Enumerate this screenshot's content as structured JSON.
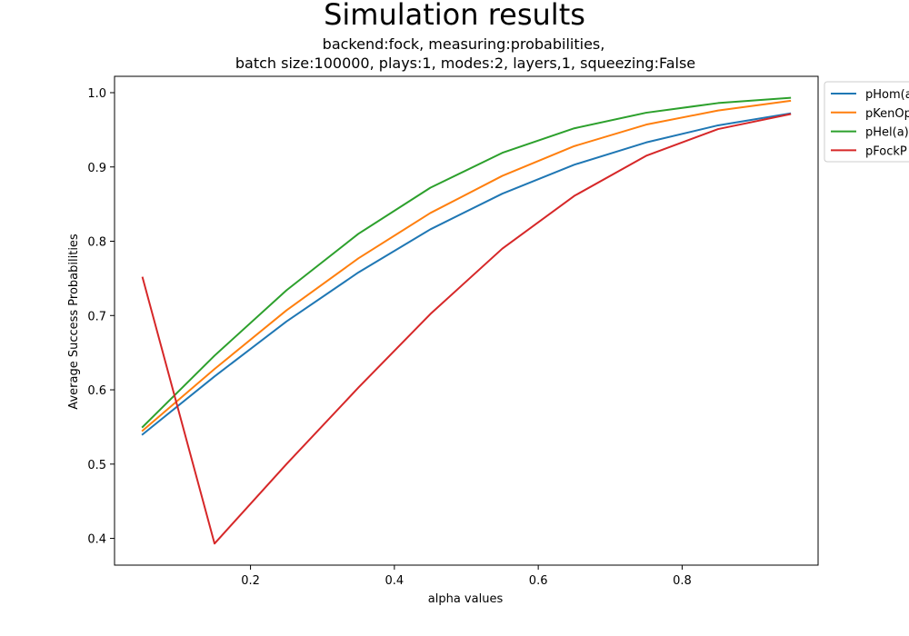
{
  "chart_data": {
    "type": "line",
    "title": "Simulation results",
    "subtitle_lines": [
      "backend:fock, measuring:probabilities,",
      "batch size:100000, plays:1, modes:2, layers,1, squeezing:False"
    ],
    "xlabel": "alpha values",
    "ylabel": "Average Success Probabilities",
    "xlim": [
      0.011,
      0.989
    ],
    "ylim": [
      0.364,
      1.022
    ],
    "xticks": [
      0.2,
      0.4,
      0.6,
      0.8
    ],
    "xtick_labels": [
      "0.2",
      "0.4",
      "0.6",
      "0.8"
    ],
    "yticks": [
      0.4,
      0.5,
      0.6,
      0.7,
      0.8,
      0.9,
      1.0
    ],
    "ytick_labels": [
      "0.4",
      "0.5",
      "0.6",
      "0.7",
      "0.8",
      "0.9",
      "1.0"
    ],
    "grid": false,
    "legend_position": "outside-top-right",
    "x": [
      0.05,
      0.15,
      0.25,
      0.35,
      0.45,
      0.55,
      0.65,
      0.75,
      0.85,
      0.95
    ],
    "series": [
      {
        "name": "pHom(a)",
        "legend_label": "pHom(a",
        "color": "#1f77b4",
        "values": [
          0.54,
          0.618,
          0.692,
          0.758,
          0.816,
          0.864,
          0.903,
          0.933,
          0.956,
          0.972
        ]
      },
      {
        "name": "pKenOp",
        "legend_label": "pKenOp",
        "color": "#ff7f0e",
        "values": [
          0.545,
          0.628,
          0.707,
          0.777,
          0.838,
          0.888,
          0.928,
          0.957,
          0.976,
          0.989
        ]
      },
      {
        "name": "pHel(a)",
        "legend_label": "pHel(a)",
        "color": "#2ca02c",
        "values": [
          0.55,
          0.646,
          0.734,
          0.81,
          0.872,
          0.919,
          0.952,
          0.973,
          0.986,
          0.993
        ]
      },
      {
        "name": "pFockP",
        "legend_label": "pFockP",
        "color": "#d62728",
        "values": [
          0.751,
          0.393,
          0.5,
          0.603,
          0.702,
          0.79,
          0.861,
          0.915,
          0.951,
          0.971
        ]
      }
    ]
  }
}
